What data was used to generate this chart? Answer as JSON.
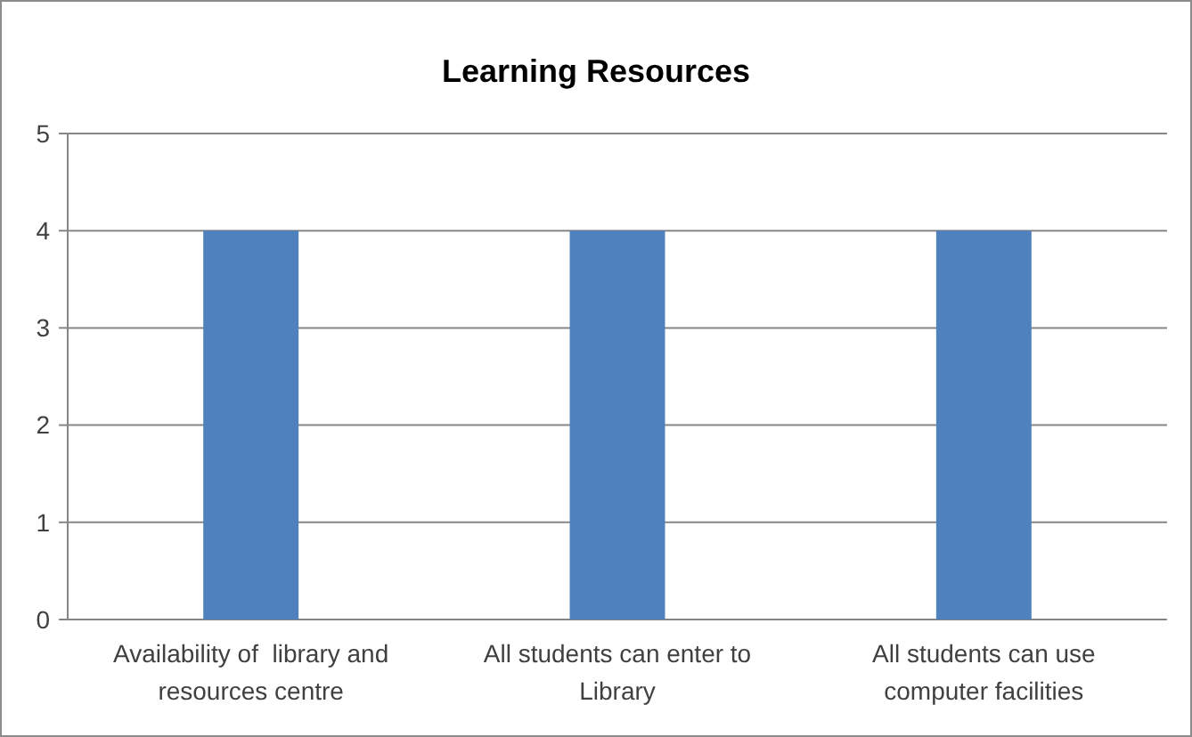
{
  "chart_data": {
    "type": "bar",
    "title": "Learning Resources",
    "categories": [
      "Availability of  library and resources centre",
      "All students can enter to Library",
      "All students can use computer facilities"
    ],
    "values": [
      4,
      4,
      4
    ],
    "color": "#4f81bd",
    "ylim": [
      0,
      5
    ],
    "yticks": [
      0,
      1,
      2,
      3,
      4,
      5
    ],
    "grid": "y"
  }
}
